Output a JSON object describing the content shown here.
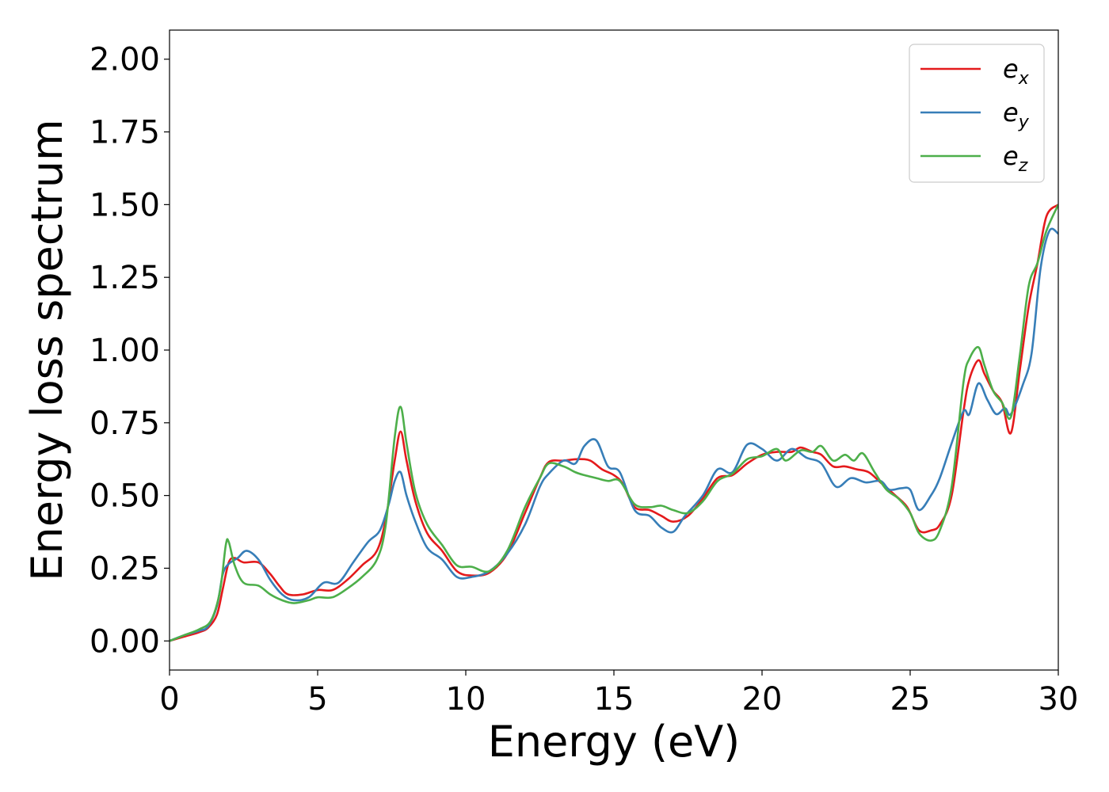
{
  "chart_data": {
    "type": "line",
    "xlabel": "Energy (eV)",
    "ylabel": "Energy loss spectrum",
    "xlim": [
      0,
      30
    ],
    "ylim": [
      -0.1,
      2.1
    ],
    "x_ticks": [
      0,
      5,
      10,
      15,
      20,
      25,
      30
    ],
    "x_tick_labels": [
      "0",
      "5",
      "10",
      "15",
      "20",
      "25",
      "30"
    ],
    "y_ticks": [
      0,
      0.25,
      0.5,
      0.75,
      1.0,
      1.25,
      1.5,
      1.75,
      2.0
    ],
    "y_tick_labels": [
      "0.00",
      "0.25",
      "0.50",
      "0.75",
      "1.00",
      "1.25",
      "1.50",
      "1.75",
      "2.00"
    ],
    "grid": false,
    "legend_position": "top-right",
    "series": [
      {
        "name": "e_x",
        "label_base": "e",
        "label_sub": "x",
        "color": "#e41a1c",
        "points": [
          [
            0,
            0
          ],
          [
            0.5,
            0.015
          ],
          [
            1,
            0.03
          ],
          [
            1.3,
            0.045
          ],
          [
            1.6,
            0.09
          ],
          [
            1.8,
            0.18
          ],
          [
            2.0,
            0.27
          ],
          [
            2.2,
            0.285
          ],
          [
            2.5,
            0.27
          ],
          [
            3.0,
            0.27
          ],
          [
            3.4,
            0.23
          ],
          [
            3.7,
            0.19
          ],
          [
            4.0,
            0.16
          ],
          [
            4.5,
            0.16
          ],
          [
            5.0,
            0.175
          ],
          [
            5.5,
            0.175
          ],
          [
            6.0,
            0.21
          ],
          [
            6.5,
            0.26
          ],
          [
            7.0,
            0.31
          ],
          [
            7.3,
            0.42
          ],
          [
            7.6,
            0.62
          ],
          [
            7.8,
            0.72
          ],
          [
            8.0,
            0.62
          ],
          [
            8.3,
            0.48
          ],
          [
            8.7,
            0.37
          ],
          [
            9.2,
            0.31
          ],
          [
            9.7,
            0.24
          ],
          [
            10.2,
            0.225
          ],
          [
            10.8,
            0.235
          ],
          [
            11.4,
            0.3
          ],
          [
            12.0,
            0.44
          ],
          [
            12.5,
            0.56
          ],
          [
            12.8,
            0.615
          ],
          [
            13.3,
            0.62
          ],
          [
            13.8,
            0.625
          ],
          [
            14.2,
            0.62
          ],
          [
            14.6,
            0.59
          ],
          [
            15.0,
            0.57
          ],
          [
            15.3,
            0.54
          ],
          [
            15.7,
            0.46
          ],
          [
            16.2,
            0.45
          ],
          [
            16.6,
            0.43
          ],
          [
            17.0,
            0.41
          ],
          [
            17.5,
            0.43
          ],
          [
            18.0,
            0.49
          ],
          [
            18.5,
            0.56
          ],
          [
            19.0,
            0.57
          ],
          [
            19.5,
            0.61
          ],
          [
            20.0,
            0.64
          ],
          [
            20.5,
            0.65
          ],
          [
            21.0,
            0.65
          ],
          [
            21.3,
            0.665
          ],
          [
            21.7,
            0.65
          ],
          [
            22.0,
            0.64
          ],
          [
            22.4,
            0.6
          ],
          [
            22.8,
            0.6
          ],
          [
            23.2,
            0.59
          ],
          [
            23.6,
            0.58
          ],
          [
            24.0,
            0.545
          ],
          [
            24.5,
            0.5
          ],
          [
            24.9,
            0.46
          ],
          [
            25.3,
            0.38
          ],
          [
            25.7,
            0.38
          ],
          [
            26.0,
            0.4
          ],
          [
            26.4,
            0.5
          ],
          [
            26.8,
            0.79
          ],
          [
            27.0,
            0.9
          ],
          [
            27.3,
            0.965
          ],
          [
            27.5,
            0.92
          ],
          [
            27.8,
            0.86
          ],
          [
            28.1,
            0.82
          ],
          [
            28.4,
            0.715
          ],
          [
            28.7,
            0.93
          ],
          [
            29.0,
            1.15
          ],
          [
            29.3,
            1.3
          ],
          [
            29.6,
            1.46
          ],
          [
            30.0,
            1.5
          ]
        ]
      },
      {
        "name": "e_y",
        "label_base": "e",
        "label_sub": "y",
        "color": "#377eb8",
        "points": [
          [
            0,
            0
          ],
          [
            0.5,
            0.02
          ],
          [
            1,
            0.035
          ],
          [
            1.3,
            0.05
          ],
          [
            1.6,
            0.12
          ],
          [
            1.8,
            0.23
          ],
          [
            2.0,
            0.265
          ],
          [
            2.3,
            0.285
          ],
          [
            2.6,
            0.31
          ],
          [
            3.0,
            0.28
          ],
          [
            3.4,
            0.21
          ],
          [
            3.8,
            0.16
          ],
          [
            4.2,
            0.14
          ],
          [
            4.7,
            0.15
          ],
          [
            5.2,
            0.2
          ],
          [
            5.7,
            0.2
          ],
          [
            6.2,
            0.27
          ],
          [
            6.7,
            0.34
          ],
          [
            7.1,
            0.38
          ],
          [
            7.4,
            0.47
          ],
          [
            7.6,
            0.55
          ],
          [
            7.8,
            0.58
          ],
          [
            8.0,
            0.5
          ],
          [
            8.3,
            0.41
          ],
          [
            8.7,
            0.32
          ],
          [
            9.2,
            0.28
          ],
          [
            9.7,
            0.22
          ],
          [
            10.2,
            0.22
          ],
          [
            10.8,
            0.24
          ],
          [
            11.4,
            0.3
          ],
          [
            12.0,
            0.4
          ],
          [
            12.5,
            0.53
          ],
          [
            12.8,
            0.575
          ],
          [
            13.3,
            0.62
          ],
          [
            13.7,
            0.61
          ],
          [
            14.0,
            0.67
          ],
          [
            14.4,
            0.69
          ],
          [
            14.8,
            0.6
          ],
          [
            15.2,
            0.58
          ],
          [
            15.7,
            0.45
          ],
          [
            16.2,
            0.43
          ],
          [
            16.6,
            0.39
          ],
          [
            17.0,
            0.375
          ],
          [
            17.4,
            0.43
          ],
          [
            18.0,
            0.5
          ],
          [
            18.5,
            0.59
          ],
          [
            19.0,
            0.58
          ],
          [
            19.5,
            0.675
          ],
          [
            20.0,
            0.66
          ],
          [
            20.5,
            0.62
          ],
          [
            21.0,
            0.66
          ],
          [
            21.5,
            0.63
          ],
          [
            22.0,
            0.61
          ],
          [
            22.5,
            0.53
          ],
          [
            23.0,
            0.56
          ],
          [
            23.5,
            0.545
          ],
          [
            24.0,
            0.55
          ],
          [
            24.3,
            0.52
          ],
          [
            24.7,
            0.525
          ],
          [
            25.0,
            0.52
          ],
          [
            25.3,
            0.45
          ],
          [
            25.7,
            0.5
          ],
          [
            26.0,
            0.56
          ],
          [
            26.4,
            0.68
          ],
          [
            26.8,
            0.79
          ],
          [
            27.0,
            0.78
          ],
          [
            27.3,
            0.885
          ],
          [
            27.6,
            0.83
          ],
          [
            27.9,
            0.78
          ],
          [
            28.2,
            0.8
          ],
          [
            28.4,
            0.78
          ],
          [
            28.8,
            0.88
          ],
          [
            29.1,
            0.99
          ],
          [
            29.4,
            1.28
          ],
          [
            29.7,
            1.41
          ],
          [
            30.0,
            1.4
          ]
        ]
      },
      {
        "name": "e_z",
        "label_base": "e",
        "label_sub": "z",
        "color": "#4daf4a",
        "points": [
          [
            0,
            0
          ],
          [
            0.5,
            0.02
          ],
          [
            1,
            0.04
          ],
          [
            1.4,
            0.07
          ],
          [
            1.7,
            0.17
          ],
          [
            1.9,
            0.33
          ],
          [
            2.0,
            0.34
          ],
          [
            2.2,
            0.26
          ],
          [
            2.5,
            0.2
          ],
          [
            3.0,
            0.19
          ],
          [
            3.4,
            0.16
          ],
          [
            3.8,
            0.14
          ],
          [
            4.2,
            0.13
          ],
          [
            4.7,
            0.14
          ],
          [
            5.0,
            0.15
          ],
          [
            5.5,
            0.15
          ],
          [
            6.0,
            0.18
          ],
          [
            6.5,
            0.22
          ],
          [
            7.0,
            0.28
          ],
          [
            7.3,
            0.4
          ],
          [
            7.6,
            0.7
          ],
          [
            7.8,
            0.805
          ],
          [
            8.0,
            0.68
          ],
          [
            8.3,
            0.51
          ],
          [
            8.7,
            0.4
          ],
          [
            9.2,
            0.33
          ],
          [
            9.7,
            0.26
          ],
          [
            10.2,
            0.255
          ],
          [
            10.8,
            0.24
          ],
          [
            11.4,
            0.31
          ],
          [
            12.0,
            0.46
          ],
          [
            12.5,
            0.56
          ],
          [
            12.8,
            0.61
          ],
          [
            13.3,
            0.6
          ],
          [
            13.7,
            0.58
          ],
          [
            14.0,
            0.57
          ],
          [
            14.4,
            0.56
          ],
          [
            14.8,
            0.55
          ],
          [
            15.2,
            0.55
          ],
          [
            15.7,
            0.47
          ],
          [
            16.2,
            0.46
          ],
          [
            16.6,
            0.465
          ],
          [
            17.0,
            0.45
          ],
          [
            17.5,
            0.44
          ],
          [
            18.0,
            0.48
          ],
          [
            18.5,
            0.55
          ],
          [
            19.0,
            0.575
          ],
          [
            19.5,
            0.625
          ],
          [
            20.0,
            0.635
          ],
          [
            20.5,
            0.66
          ],
          [
            20.8,
            0.62
          ],
          [
            21.3,
            0.655
          ],
          [
            21.7,
            0.65
          ],
          [
            22.0,
            0.67
          ],
          [
            22.4,
            0.62
          ],
          [
            22.8,
            0.64
          ],
          [
            23.1,
            0.62
          ],
          [
            23.4,
            0.645
          ],
          [
            23.8,
            0.58
          ],
          [
            24.2,
            0.52
          ],
          [
            24.6,
            0.49
          ],
          [
            25.0,
            0.44
          ],
          [
            25.3,
            0.37
          ],
          [
            25.7,
            0.345
          ],
          [
            26.0,
            0.38
          ],
          [
            26.4,
            0.53
          ],
          [
            26.8,
            0.89
          ],
          [
            27.0,
            0.97
          ],
          [
            27.3,
            1.01
          ],
          [
            27.5,
            0.95
          ],
          [
            27.8,
            0.86
          ],
          [
            28.1,
            0.82
          ],
          [
            28.4,
            0.77
          ],
          [
            28.7,
            0.98
          ],
          [
            29.0,
            1.22
          ],
          [
            29.3,
            1.3
          ],
          [
            29.6,
            1.41
          ],
          [
            30.0,
            1.5
          ]
        ]
      }
    ]
  }
}
